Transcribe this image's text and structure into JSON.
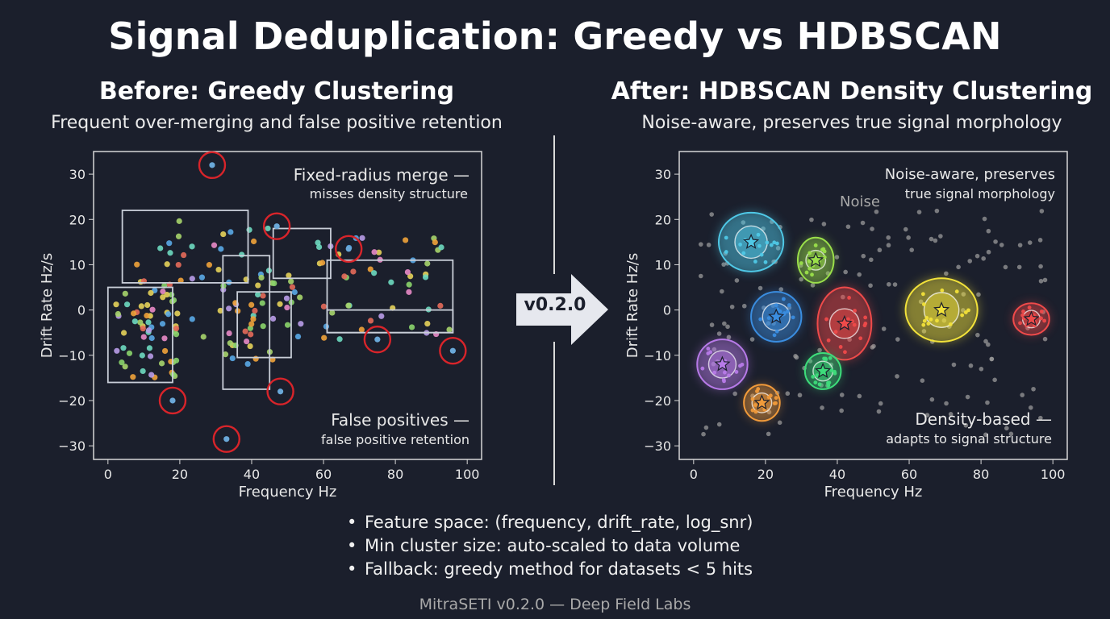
{
  "title": "Signal Deduplication: Greedy vs HDBSCAN",
  "left_panel": {
    "title": "Before: Greedy Clustering",
    "subtitle": "Frequent over-merging and false positive retention",
    "annotation_top": {
      "line1": "Fixed-radius merge —",
      "line2": "misses density structure"
    },
    "annotation_bottom": {
      "line1": "False positives  —",
      "line2": "false positive retention"
    }
  },
  "right_panel": {
    "title": "After: HDBSCAN Density Clustering",
    "subtitle": "Noise-aware, preserves true signal morphology",
    "annotation_top": {
      "line1": "Noise-aware, preserves",
      "line2": "true signal morphology"
    },
    "noise_label": "Noise",
    "annotation_bottom": {
      "line1": "Density-based —",
      "line2": "adapts to signal structure"
    }
  },
  "version": "v0.2.0",
  "bullets": [
    "Feature space: (frequency, drift_rate, log_snr)",
    "Min cluster size: auto-scaled to data volume",
    "Fallback: greedy method for datasets < 5 hits"
  ],
  "footer": "MitraSETI v0.2.0 — Deep Field Labs",
  "colors": {
    "background": "#1b1f2c",
    "false_positive_circle": "#d8242a",
    "box_outline": "#c9ced8",
    "noise_point": "#9a9a9a"
  },
  "chart_data": [
    {
      "type": "scatter",
      "panel": "left",
      "xlabel": "Frequency Hz",
      "ylabel": "Drift Rate Hz/s",
      "xlim": [
        -4,
        104
      ],
      "ylim": [
        -33,
        35
      ],
      "xticks": [
        0,
        20,
        40,
        60,
        80,
        100
      ],
      "yticks": [
        30,
        20,
        10,
        0,
        -10,
        -20,
        -30
      ],
      "greedy_boxes": [
        {
          "x0": 4,
          "x1": 39,
          "y0": 6,
          "y1": 22
        },
        {
          "x0": 0,
          "x1": 18,
          "y0": -16,
          "y1": 5
        },
        {
          "x0": 32,
          "x1": 45,
          "y0": -17.5,
          "y1": 12
        },
        {
          "x0": 36,
          "x1": 51,
          "y0": -10.5,
          "y1": 4
        },
        {
          "x0": 46,
          "x1": 62,
          "y0": 7,
          "y1": 18
        },
        {
          "x0": 61,
          "x1": 96,
          "y0": -5,
          "y1": 11
        },
        {
          "x0": 61,
          "x1": 96,
          "y0": -5,
          "y1": 0
        }
      ],
      "false_positives": [
        {
          "x": 29,
          "y": 32
        },
        {
          "x": 47,
          "y": 18.5
        },
        {
          "x": 67,
          "y": 13.5
        },
        {
          "x": 75,
          "y": -6.5
        },
        {
          "x": 96,
          "y": -9
        },
        {
          "x": 18,
          "y": -20
        },
        {
          "x": 48,
          "y": -18
        },
        {
          "x": 33,
          "y": -28.5
        }
      ],
      "points_seed": 7,
      "points_count": 190
    },
    {
      "type": "scatter",
      "panel": "right",
      "xlabel": "Frequency Hz",
      "ylabel": "Drift Rate Hz/s",
      "xlim": [
        -4,
        104
      ],
      "ylim": [
        -33,
        35
      ],
      "xticks": [
        0,
        20,
        40,
        60,
        80,
        100
      ],
      "yticks": [
        30,
        20,
        10,
        0,
        -10,
        -20,
        -30
      ],
      "clusters": [
        {
          "name": "cyan",
          "color": "#4fc8e6",
          "x": 16,
          "y": 15,
          "rx": 9,
          "ry": 6.5
        },
        {
          "name": "green",
          "color": "#9be04a",
          "x": 34,
          "y": 11,
          "rx": 5,
          "ry": 5
        },
        {
          "name": "blue",
          "color": "#3a8de0",
          "x": 23,
          "y": -1.5,
          "rx": 7,
          "ry": 5.5
        },
        {
          "name": "red",
          "color": "#ef4a4a",
          "x": 42,
          "y": -3,
          "rx": 7.5,
          "ry": 8
        },
        {
          "name": "yellow",
          "color": "#f2e23a",
          "x": 69,
          "y": 0,
          "rx": 10,
          "ry": 7
        },
        {
          "name": "violet",
          "color": "#b77ae8",
          "x": 8,
          "y": -12,
          "rx": 7,
          "ry": 5.5
        },
        {
          "name": "lime",
          "color": "#3ddc7a",
          "x": 36,
          "y": -13.5,
          "rx": 5,
          "ry": 4
        },
        {
          "name": "orange",
          "color": "#f09a3a",
          "x": 19,
          "y": -20.5,
          "rx": 5,
          "ry": 4
        },
        {
          "name": "crimson",
          "color": "#ef4a4a",
          "x": 94,
          "y": -2,
          "rx": 5,
          "ry": 3.5
        }
      ],
      "noise_seed": 13,
      "noise_count": 150
    }
  ]
}
